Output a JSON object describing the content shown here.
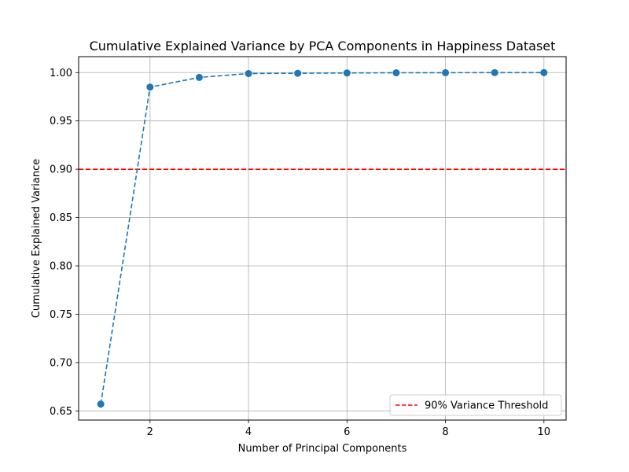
{
  "chart_data": {
    "type": "line",
    "title": "Cumulative Explained Variance by PCA Components in Happiness Dataset",
    "xlabel": "Number of Principal Components",
    "ylabel": "Cumulative Explained Variance",
    "x": [
      1,
      2,
      3,
      4,
      5,
      6,
      7,
      8,
      9,
      10
    ],
    "series": [
      {
        "values": [
          0.657,
          0.985,
          0.995,
          0.999,
          0.9993,
          0.9996,
          0.9998,
          0.9999,
          0.99995,
          1.0
        ],
        "color": "#1f77b4",
        "line_style": "dashed",
        "marker": "circle"
      }
    ],
    "threshold": {
      "value": 0.9,
      "label": "90% Variance Threshold",
      "color": "#ff0000",
      "line_style": "dashed"
    },
    "xlim": [
      0.55,
      10.45
    ],
    "ylim": [
      0.6405,
      1.0165
    ],
    "xticks": [
      2,
      4,
      6,
      8,
      10
    ],
    "xtick_labels": [
      "2",
      "4",
      "6",
      "8",
      "10"
    ],
    "yticks": [
      0.65,
      0.7,
      0.75,
      0.8,
      0.85,
      0.9,
      0.95,
      1.0
    ],
    "ytick_labels": [
      "0.65",
      "0.70",
      "0.75",
      "0.80",
      "0.85",
      "0.90",
      "0.95",
      "1.00"
    ],
    "grid": true,
    "legend_position": "lower-right"
  }
}
